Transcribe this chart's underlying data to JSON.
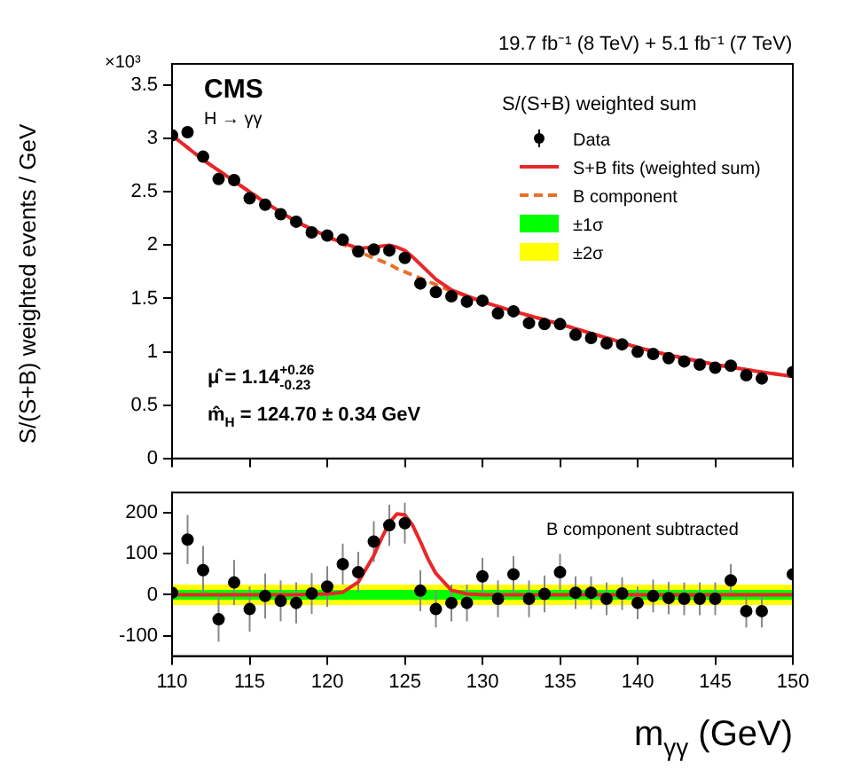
{
  "chart_data": [
    {
      "type": "line",
      "title": "19.7 fb⁻¹ (8 TeV) + 5.1 fb⁻¹ (7 TeV)",
      "ylabel": "S/(S+B) weighted events / GeV",
      "legend_title": "S/(S+B) weighted sum",
      "legend": "top right",
      "grid": false,
      "tick_labels": "y",
      "annotations": [
        "×10³",
        "CMS",
        "H → γγ",
        "μ̂ = 1.14$^{+0.26}$$_{-0.23}$",
        "m̂$_{H}$ = 124.70 ± 0.34 GeV"
      ],
      "xlim": [
        110,
        150
      ],
      "xticks": [
        110,
        115,
        120,
        125,
        130,
        135,
        140,
        145,
        150
      ],
      "ylim": [
        0,
        3.7
      ],
      "yticks": [
        0,
        0.5,
        1,
        1.5,
        2,
        2.5,
        3,
        3.5
      ],
      "series": [
        {
          "name": "Data",
          "type": "scatter",
          "marker": "circle",
          "color": "#000000",
          "x": [
            110,
            111,
            112,
            113,
            114,
            115,
            116,
            117,
            118,
            119,
            120,
            121,
            122,
            123,
            124,
            125,
            126,
            127,
            128,
            129,
            130,
            131,
            132,
            133,
            134,
            135,
            136,
            137,
            138,
            139,
            140,
            141,
            142,
            143,
            144,
            145,
            146,
            147,
            148,
            150
          ],
          "values": [
            3.03,
            3.06,
            2.83,
            2.62,
            2.61,
            2.44,
            2.38,
            2.29,
            2.22,
            2.12,
            2.09,
            2.05,
            1.94,
            1.96,
            1.95,
            1.88,
            1.64,
            1.56,
            1.52,
            1.47,
            1.48,
            1.36,
            1.38,
            1.27,
            1.26,
            1.26,
            1.16,
            1.13,
            1.08,
            1.07,
            1.0,
            0.98,
            0.94,
            0.91,
            0.88,
            0.85,
            0.87,
            0.78,
            0.75,
            0.81
          ]
        },
        {
          "name": "S+B fits (weighted sum)",
          "type": "line",
          "color": "#e8272a",
          "x": [
            110,
            112,
            114,
            116,
            118,
            120,
            121,
            122,
            123,
            123.5,
            124,
            124.5,
            125,
            125.5,
            126,
            126.5,
            127,
            128,
            130,
            132,
            135,
            138,
            140,
            142,
            145,
            148,
            150
          ],
          "values": [
            3.03,
            2.8,
            2.6,
            2.4,
            2.22,
            2.08,
            2.02,
            1.97,
            1.98,
            1.99,
            2.0,
            1.98,
            1.95,
            1.89,
            1.82,
            1.75,
            1.68,
            1.58,
            1.47,
            1.38,
            1.26,
            1.13,
            1.04,
            0.97,
            0.88,
            0.81,
            0.77
          ]
        },
        {
          "name": "B component",
          "type": "line",
          "line_style": "dashed",
          "color": "#e8702a",
          "x": [
            110,
            112,
            114,
            116,
            118,
            120,
            121,
            122,
            123,
            123.5,
            124,
            124.5,
            125,
            125.5,
            126,
            126.5,
            127,
            128,
            130,
            132,
            135,
            138,
            140,
            142,
            145,
            148,
            150
          ],
          "values": [
            3.03,
            2.8,
            2.6,
            2.4,
            2.22,
            2.08,
            2.01,
            1.94,
            1.88,
            1.85,
            1.82,
            1.78,
            1.75,
            1.72,
            1.69,
            1.66,
            1.63,
            1.57,
            1.47,
            1.38,
            1.26,
            1.13,
            1.04,
            0.97,
            0.88,
            0.81,
            0.77
          ]
        }
      ]
    },
    {
      "type": "line",
      "xlabel": "m$_{γγ}$ (GeV)",
      "grid": false,
      "annotations": [
        "B component subtracted"
      ],
      "xlim": [
        110,
        150
      ],
      "xticks": [
        110,
        115,
        120,
        125,
        130,
        135,
        140,
        145,
        150
      ],
      "ylim": [
        -150,
        250
      ],
      "yticks": [
        -100,
        0,
        100,
        200
      ],
      "bands": [
        {
          "axis": "y",
          "from": -25,
          "to": 25,
          "label": "±2σ",
          "color": "#ffff00"
        },
        {
          "axis": "y",
          "from": -12,
          "to": 12,
          "label": "±1σ",
          "color": "#00ff00"
        }
      ],
      "series": [
        {
          "type": "scatter",
          "marker": "circle",
          "color": "#000000",
          "x": [
            110,
            111,
            112,
            113,
            114,
            115,
            116,
            117,
            118,
            119,
            120,
            121,
            122,
            123,
            124,
            125,
            126,
            127,
            128,
            129,
            130,
            131,
            132,
            133,
            134,
            135,
            136,
            137,
            138,
            139,
            140,
            141,
            142,
            143,
            144,
            145,
            146,
            147,
            148,
            150
          ],
          "values": [
            5,
            135,
            60,
            -60,
            30,
            -35,
            -3,
            -15,
            -20,
            3,
            20,
            75,
            55,
            130,
            170,
            175,
            10,
            -35,
            -20,
            -20,
            45,
            -10,
            50,
            -10,
            2,
            55,
            5,
            5,
            -10,
            3,
            -20,
            -3,
            -8,
            -10,
            -10,
            -10,
            35,
            -40,
            -40,
            50
          ],
          "errors": [
            60,
            60,
            60,
            55,
            55,
            55,
            55,
            50,
            50,
            50,
            50,
            50,
            50,
            50,
            50,
            50,
            50,
            45,
            45,
            45,
            45,
            45,
            45,
            45,
            45,
            45,
            40,
            40,
            40,
            40,
            40,
            40,
            40,
            40,
            40,
            40,
            40,
            40,
            40,
            40
          ]
        },
        {
          "type": "line",
          "color": "#e8272a",
          "x": [
            110,
            118,
            120,
            121,
            122,
            123,
            123.5,
            124,
            124.5,
            125,
            125.5,
            126,
            126.5,
            127,
            128,
            129,
            130,
            150
          ],
          "values": [
            0,
            0,
            2,
            6,
            31,
            96,
            138,
            176,
            198,
            195,
            170,
            130,
            87,
            52,
            11,
            2,
            0,
            0
          ]
        }
      ]
    }
  ]
}
